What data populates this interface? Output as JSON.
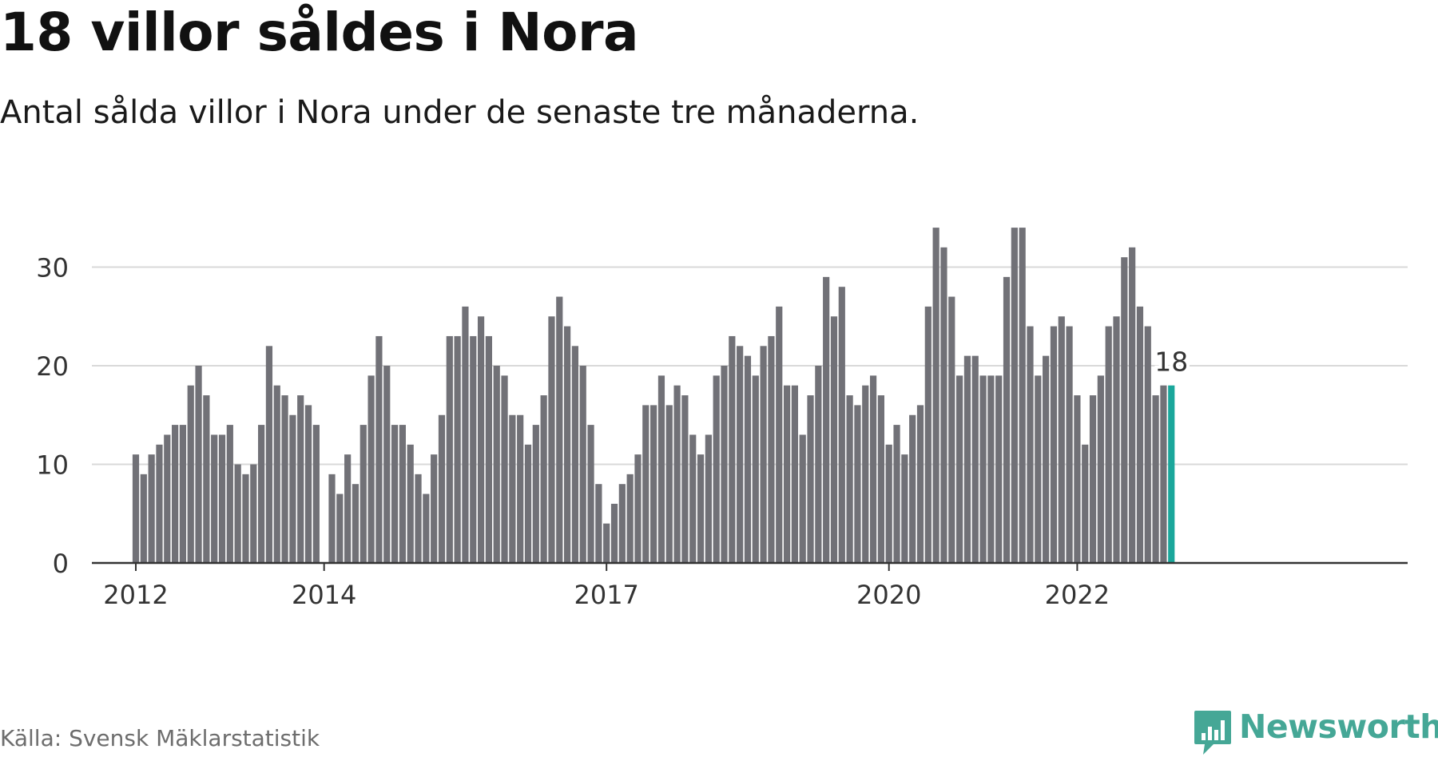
{
  "title": "18 villor såldes i Nora",
  "subtitle": "Antal sålda villor i Nora under de senaste tre månaderna.",
  "source": "Källa: Svensk Mäklarstatistik",
  "logo": {
    "text": "Newsworthy",
    "icon": "newsworthy-bar-chart-icon",
    "color": "#45a796"
  },
  "colors": {
    "bar": "#717177",
    "highlight": "#1aa79b",
    "grid": "#d9d9d9",
    "axis": "#333333"
  },
  "chart_data": {
    "type": "bar",
    "title": "18 villor såldes i Nora",
    "subtitle": "Antal sålda villor i Nora under de senaste tre månaderna.",
    "xlabel": "",
    "ylabel": "",
    "ylim": [
      0,
      35
    ],
    "yticks": [
      0,
      10,
      20,
      30
    ],
    "grid": true,
    "x_start": "2012-01",
    "x_end": "2023-01",
    "x_tick_labels": [
      {
        "label": "2012",
        "month": "2012-01"
      },
      {
        "label": "2014",
        "month": "2014-01"
      },
      {
        "label": "2017",
        "month": "2017-01"
      },
      {
        "label": "2020",
        "month": "2020-01"
      },
      {
        "label": "2022",
        "month": "2022-01"
      }
    ],
    "values": [
      11,
      9,
      11,
      12,
      13,
      14,
      14,
      18,
      20,
      17,
      13,
      13,
      14,
      10,
      9,
      10,
      14,
      22,
      18,
      17,
      15,
      17,
      16,
      14,
      null,
      9,
      7,
      11,
      8,
      14,
      19,
      23,
      20,
      14,
      14,
      12,
      9,
      7,
      11,
      15,
      23,
      23,
      26,
      23,
      25,
      23,
      20,
      19,
      15,
      15,
      12,
      14,
      17,
      25,
      27,
      24,
      22,
      20,
      14,
      8,
      4,
      6,
      8,
      9,
      11,
      16,
      16,
      19,
      16,
      18,
      17,
      13,
      11,
      13,
      19,
      20,
      23,
      22,
      21,
      19,
      22,
      23,
      26,
      18,
      18,
      13,
      17,
      20,
      29,
      25,
      28,
      17,
      16,
      18,
      19,
      17,
      12,
      14,
      11,
      15,
      16,
      26,
      34,
      32,
      27,
      19,
      21,
      21,
      19,
      19,
      19,
      29,
      34,
      34,
      24,
      19,
      21,
      24,
      25,
      24,
      17,
      12,
      17,
      19,
      24,
      25,
      31,
      32,
      26,
      24,
      17,
      18
    ],
    "highlight": {
      "month": "2023-01",
      "value": 18,
      "label": "18"
    }
  }
}
